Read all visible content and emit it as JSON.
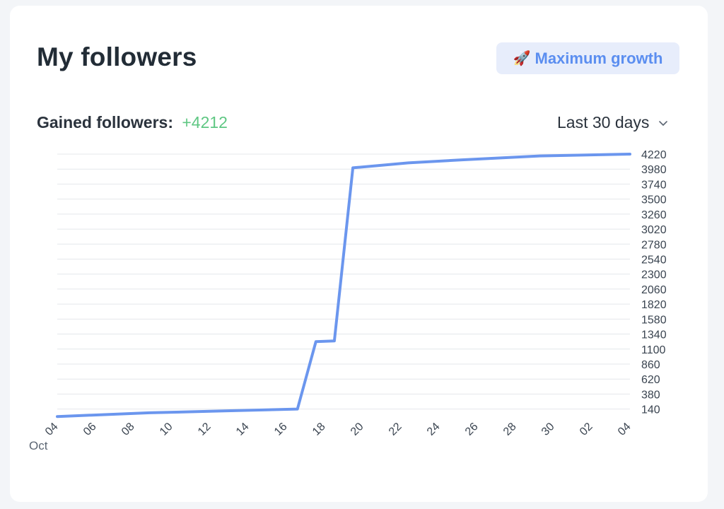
{
  "card": {
    "title": "My followers",
    "growth_button": {
      "label": "Maximum growth",
      "icon": "rocket-icon"
    },
    "gained_label": "Gained followers:",
    "gained_value": "+4212",
    "period_selector": {
      "value": "Last 30 days",
      "icon": "chevron-down-icon"
    }
  },
  "colors": {
    "line": "#6b96ee",
    "gain_value": "#5fc783",
    "button_bg": "#e7edfb",
    "button_text": "#5b8ef0"
  },
  "chart_data": {
    "type": "line",
    "x_tick_labels": [
      "04",
      "06",
      "08",
      "10",
      "12",
      "14",
      "16",
      "18",
      "20",
      "22",
      "24",
      "26",
      "28",
      "30",
      "02",
      "04"
    ],
    "x_month_label": "Oct",
    "y_ticks": [
      140,
      380,
      620,
      860,
      1100,
      1340,
      1580,
      1820,
      2060,
      2300,
      2540,
      2780,
      3020,
      3260,
      3500,
      3740,
      3980,
      4220
    ],
    "ylim": [
      0,
      4220
    ],
    "x": [
      "Oct 04",
      "Oct 09",
      "Oct 13",
      "Oct 17",
      "Oct 18",
      "Oct 19",
      "Oct 20",
      "Oct 23",
      "Oct 26",
      "Oct 30",
      "Nov 04"
    ],
    "series": [
      {
        "values": [
          20,
          80,
          110,
          140,
          1220,
          1230,
          4000,
          4080,
          4130,
          4190,
          4220
        ]
      }
    ],
    "grid": true
  }
}
